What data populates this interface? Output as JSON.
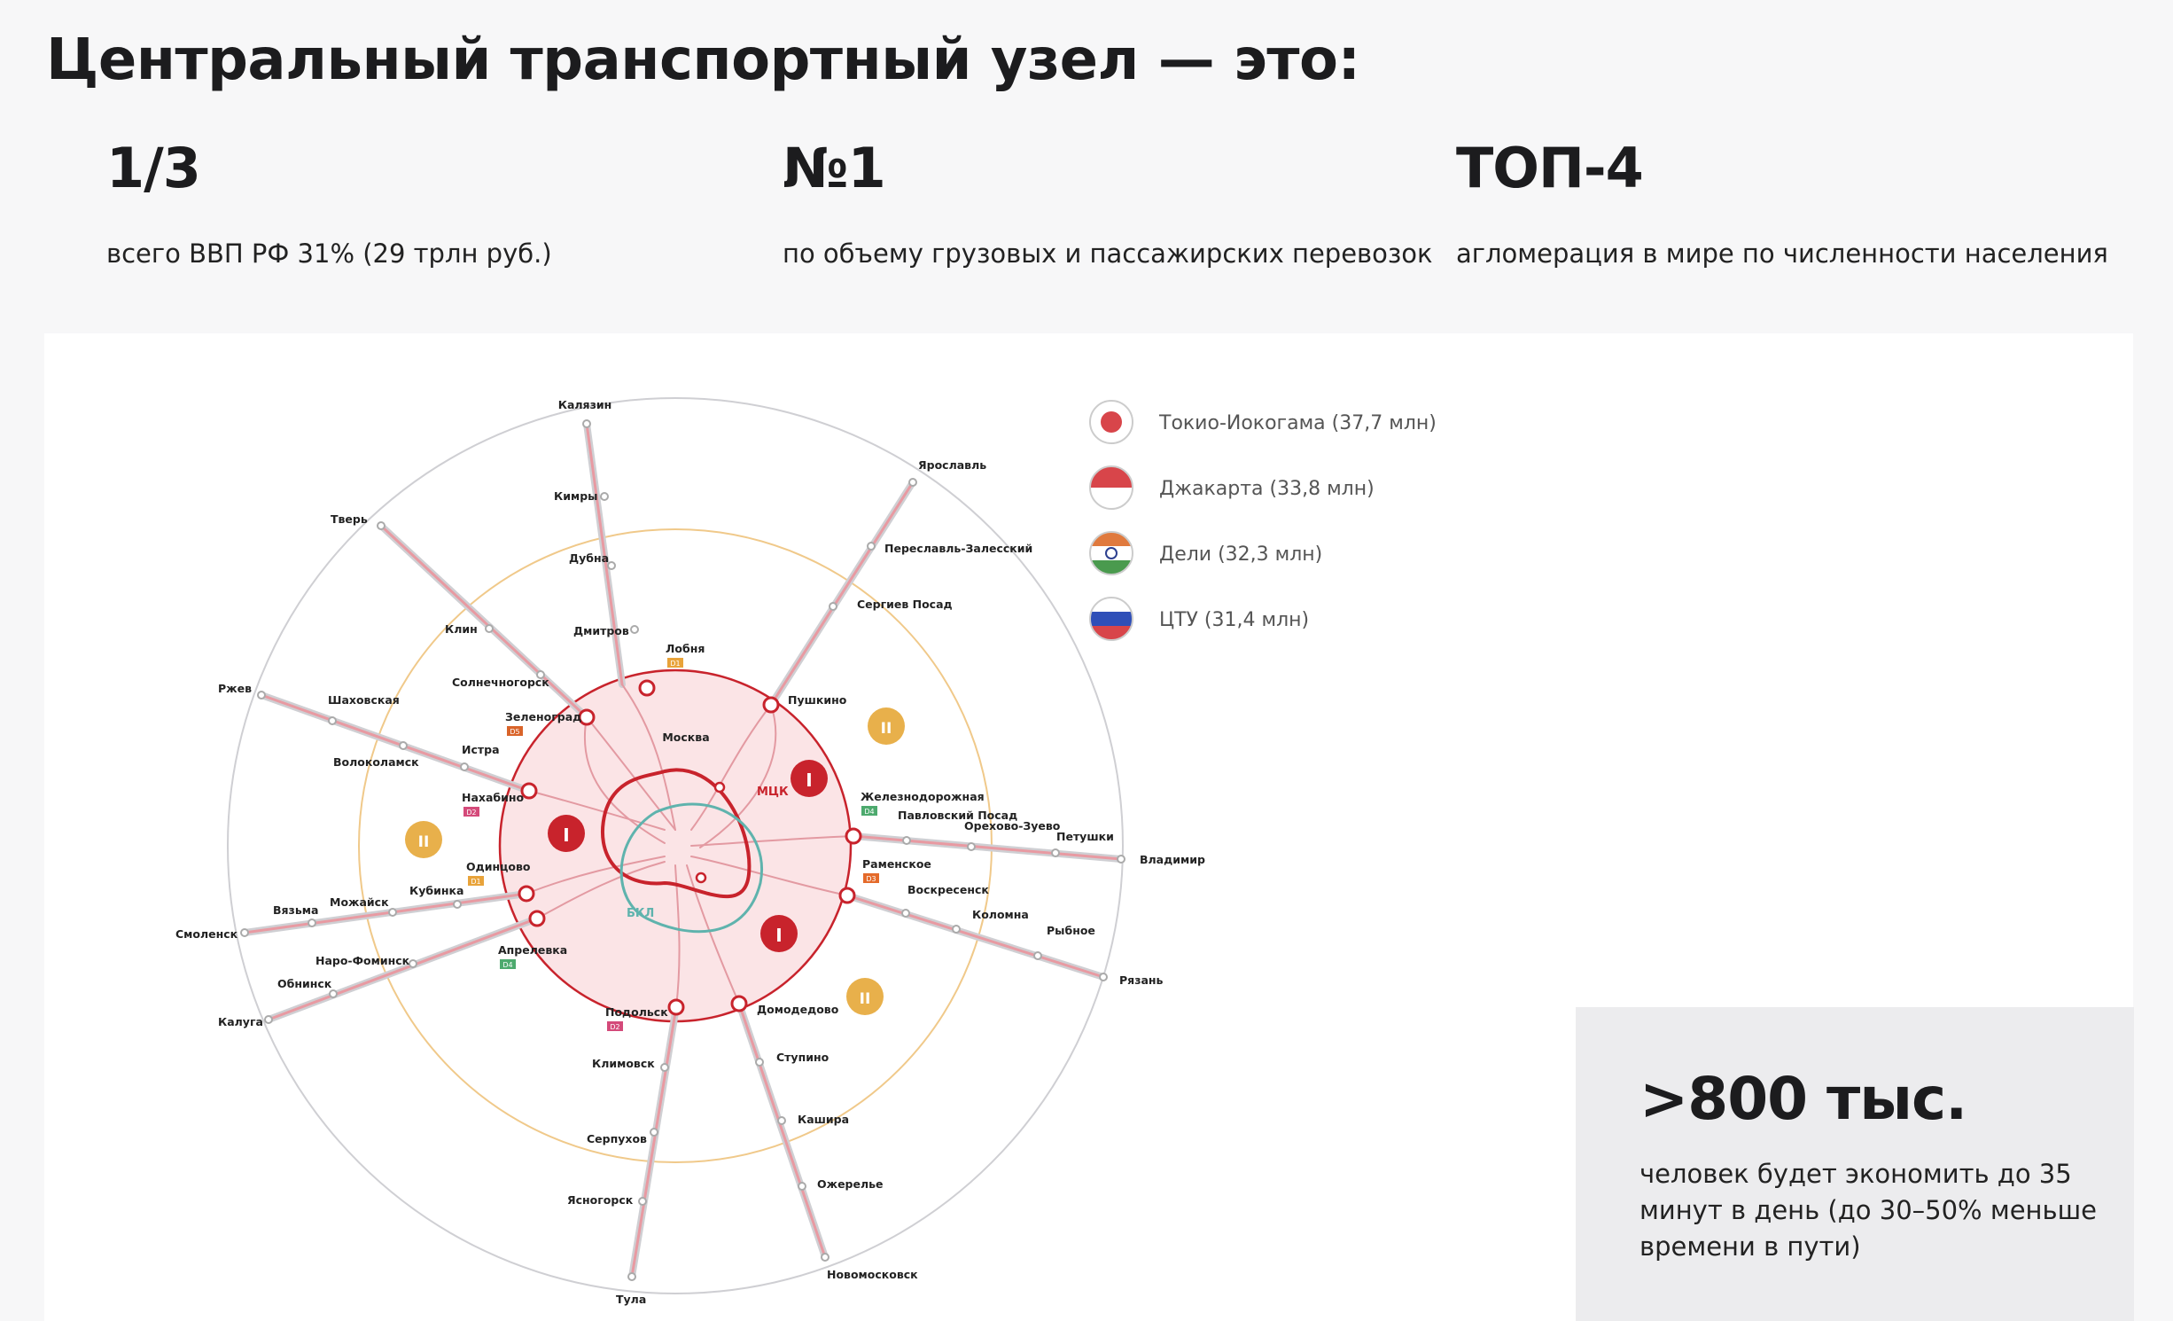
{
  "title": "Центральный транспортный узел — это:",
  "stats": [
    {
      "value": "1/3",
      "description": "всего ВВП РФ 31% (29 трлн руб.)"
    },
    {
      "value": "№1",
      "description": "по объему грузовых и пассажирских перевозок"
    },
    {
      "value": "ТОП-4",
      "description": "агломерация в мире по численности населения"
    }
  ],
  "legend": [
    {
      "label": "Токио-Иокогама (37,7 млн)",
      "flag": "japan-flag"
    },
    {
      "label": "Джакарта (33,8 млн)",
      "flag": "indonesia-flag"
    },
    {
      "label": "Дели (32,3 млн)",
      "flag": "india-flag"
    },
    {
      "label": "ЦТУ (31,4 млн)",
      "flag": "russia-flag"
    }
  ],
  "map": {
    "center_label": "Москва",
    "mck_label": "МЦК",
    "bkl_label": "БКЛ",
    "zone_inner": "I",
    "zone_middle": "II",
    "stations": {
      "kalyazin": "Калязин",
      "kimry": "Кимры",
      "dubna": "Дубна",
      "dmitrov": "Дмитров",
      "lobnya": "Лобня",
      "yaroslavl": "Ярославль",
      "pereslavl": "Переславль-Залесский",
      "sergiev": "Сергиев Посад",
      "pushkino": "Пушкино",
      "tver": "Тверь",
      "klin": "Клин",
      "solnechnogorsk": "Солнечногорск",
      "zelenograd": "Зеленоград",
      "rzhev": "Ржев",
      "shakhovskaya": "Шаховская",
      "volokolamsk": "Волоколамск",
      "istra": "Истра",
      "nakhabino": "Нахабино",
      "smolensk": "Смоленск",
      "vyazma": "Вязьма",
      "mozhaysk": "Можайск",
      "kubinka": "Кубинка",
      "odintsovo": "Одинцово",
      "kaluga": "Калуга",
      "obninsk": "Обнинск",
      "naro_fominsk": "Наро-Фоминск",
      "aprelevka": "Апрелевка",
      "tula": "Тула",
      "yasnogorsk": "Ясногорск",
      "serpukhov": "Серпухов",
      "klimovsk": "Климовск",
      "podolsk": "Подольск",
      "novomoskovsk": "Новомосковск",
      "ozherelye": "Ожерелье",
      "kashira": "Кашира",
      "stupino": "Ступино",
      "domodedovo": "Домодедово",
      "ryazan": "Рязань",
      "rybnoe": "Рыбное",
      "kolomna": "Коломна",
      "voskresensk": "Воскресенск",
      "ramenskoe": "Раменское",
      "vladimir": "Владимир",
      "petushki": "Петушки",
      "orekhovo": "Орехово-Зуево",
      "pavlovsky": "Павловский Посад",
      "zheleznodorozhny": "Железнодорожная"
    },
    "lines": {
      "d1": "D1",
      "d2": "D2",
      "d3": "D3",
      "d4": "D4",
      "d5": "D5"
    }
  },
  "callout": {
    "value": ">800 тыс.",
    "description": "человек будет экономить до 35 минут в день (до 30–50% меньше времени в пути)"
  },
  "colors": {
    "accent_red": "#c8232c",
    "zone_fill": "#fbe4e6",
    "zone_yellow": "#e8b04b",
    "outer_ring": "#cfcfd3",
    "bkl": "#5fb3ad",
    "d1": "#e8a33a",
    "d2": "#d44a7a",
    "d3": "#e46a2a",
    "d4": "#4daa6e",
    "d5": "#d9642a"
  }
}
